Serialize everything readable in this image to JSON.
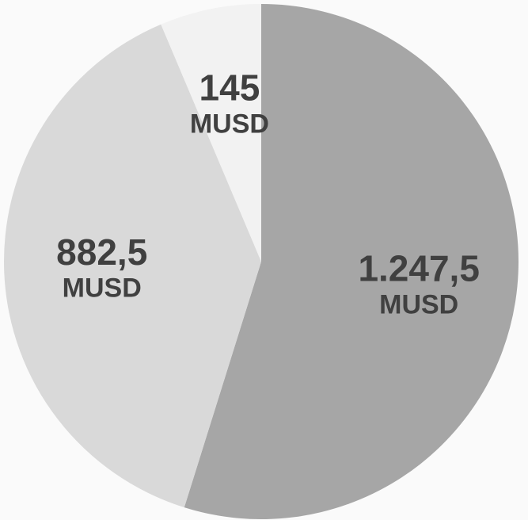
{
  "chart_data": {
    "type": "pie",
    "categories": [
      null,
      null,
      null
    ],
    "values": [
      1247.5,
      882.5,
      145
    ],
    "value_labels": [
      "1.247,5",
      "882,5",
      "145"
    ],
    "unit": "MUSD",
    "colors": [
      "#a6a6a6",
      "#d9d9d9",
      "#f2f2f2"
    ]
  }
}
